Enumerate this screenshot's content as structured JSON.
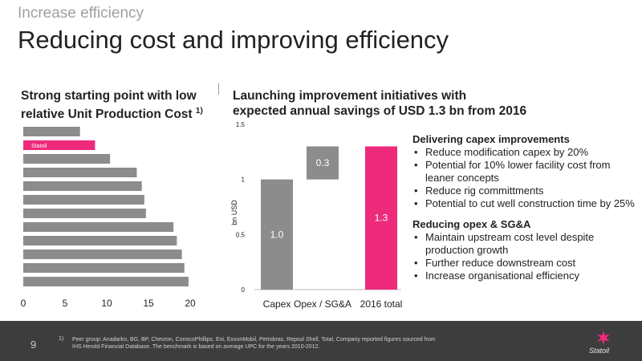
{
  "header": {
    "kicker": "Increase efficiency",
    "title": "Reducing cost and improving efficiency"
  },
  "left": {
    "subtitle_line1": "Strong starting point with low",
    "subtitle_line2": "relative Unit Production Cost",
    "footnote_ref": "1)"
  },
  "right": {
    "subtitle_line1": "Launching improvement initiatives with",
    "subtitle_line2": "expected annual savings of USD 1.3 bn from 2016"
  },
  "chart_data": [
    {
      "type": "bar",
      "orientation": "horizontal",
      "categories": [
        "",
        "Statoil",
        "",
        "",
        "",
        "",
        "",
        "",
        "",
        "",
        "",
        ""
      ],
      "values": [
        6.8,
        8.6,
        10.4,
        13.6,
        14.2,
        14.5,
        14.7,
        18.0,
        18.4,
        19.0,
        19.3,
        19.8
      ],
      "highlight_index": 1,
      "xlim": [
        0,
        20
      ],
      "xticks": [
        "0",
        "5",
        "10",
        "15",
        "20"
      ],
      "grid": false,
      "colors": {
        "default": "#8c8c8c",
        "highlight": "#ee2a7b"
      }
    },
    {
      "type": "bar",
      "subtype": "waterfall",
      "categories": [
        "Capex",
        "Opex / SG&A",
        "2016 total"
      ],
      "bars": [
        {
          "base": 0,
          "value": 1.0,
          "label": "1.0",
          "color": "#8c8c8c"
        },
        {
          "base": 1.0,
          "value": 0.3,
          "label": "0.3",
          "color": "#8c8c8c"
        },
        {
          "base": 0,
          "value": 1.3,
          "label": "1.3",
          "color": "#ee2a7b"
        }
      ],
      "ylabel": "bn USD",
      "ylim": [
        0,
        1.5
      ],
      "yticks": [
        "0",
        "0.5",
        "1",
        "1.5"
      ],
      "grid": false
    }
  ],
  "capex": {
    "heading": "Delivering capex improvements",
    "items": [
      "Reduce modification capex by 20%",
      "Potential for 10% lower facility cost from leaner concepts",
      "Reduce rig committments",
      "Potential to cut well construction time by 25%"
    ]
  },
  "opex": {
    "heading": "Reducing opex & SG&A",
    "items": [
      "Maintain upstream cost level despite production growth",
      "Further reduce downstream cost",
      "Increase organisational efficiency"
    ]
  },
  "footer": {
    "page_number": "9",
    "footnote_marker": "1)",
    "footnote_text": "Peer group: Anadarko, BG, BP, Chevron, ConocoPhillips, Eni, ExxonMobil, Petrobras, Repsol Shell, Total, Company reported figures sourced from IHS Herold Financial Database. The benchmark is based on average UPC for the years 2010-2012.",
    "logo_text": "Statoil"
  }
}
